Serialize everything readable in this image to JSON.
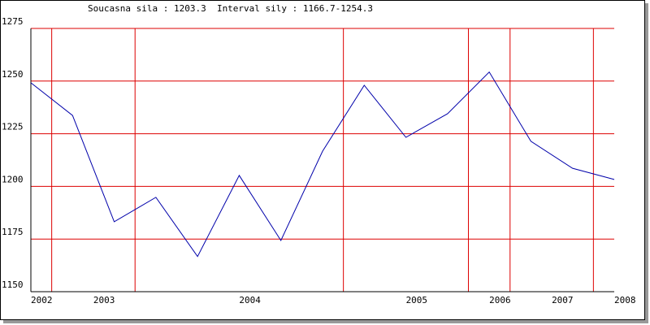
{
  "chart_data": {
    "type": "line",
    "title": "Soucasna sila : 1203.3  Interval sily : 1166.7-1254.3",
    "x": [
      0,
      1,
      2,
      3,
      4,
      5,
      6,
      7,
      8,
      9,
      10,
      11,
      12,
      13,
      14
    ],
    "series": [
      {
        "color": "#0000aa",
        "values": [
          1249.2,
          1233.7,
          1183.2,
          1194.8,
          1166.7,
          1205.2,
          1174.3,
          1216.7,
          1248.0,
          1223.3,
          1234.5,
          1254.3,
          1221.4,
          1208.6,
          1203.3
        ]
      }
    ],
    "xlim": [
      0,
      14
    ],
    "xticks": [
      {
        "value": 0,
        "label": "2002"
      },
      {
        "value": 1.5,
        "label": "2003"
      },
      {
        "value": 5,
        "label": "2004"
      },
      {
        "value": 9,
        "label": "2005"
      },
      {
        "value": 11,
        "label": "2006"
      },
      {
        "value": 12.5,
        "label": "2007"
      },
      {
        "value": 14,
        "label": "2008"
      }
    ],
    "xgrid": [
      0.5,
      2.5,
      7.5,
      10.5,
      11.5,
      13.5
    ],
    "ylim": [
      1150,
      1275
    ],
    "yticks": [
      1150,
      1175,
      1200,
      1225,
      1250,
      1275
    ],
    "grid": true,
    "grid_color": "#dd0000"
  }
}
